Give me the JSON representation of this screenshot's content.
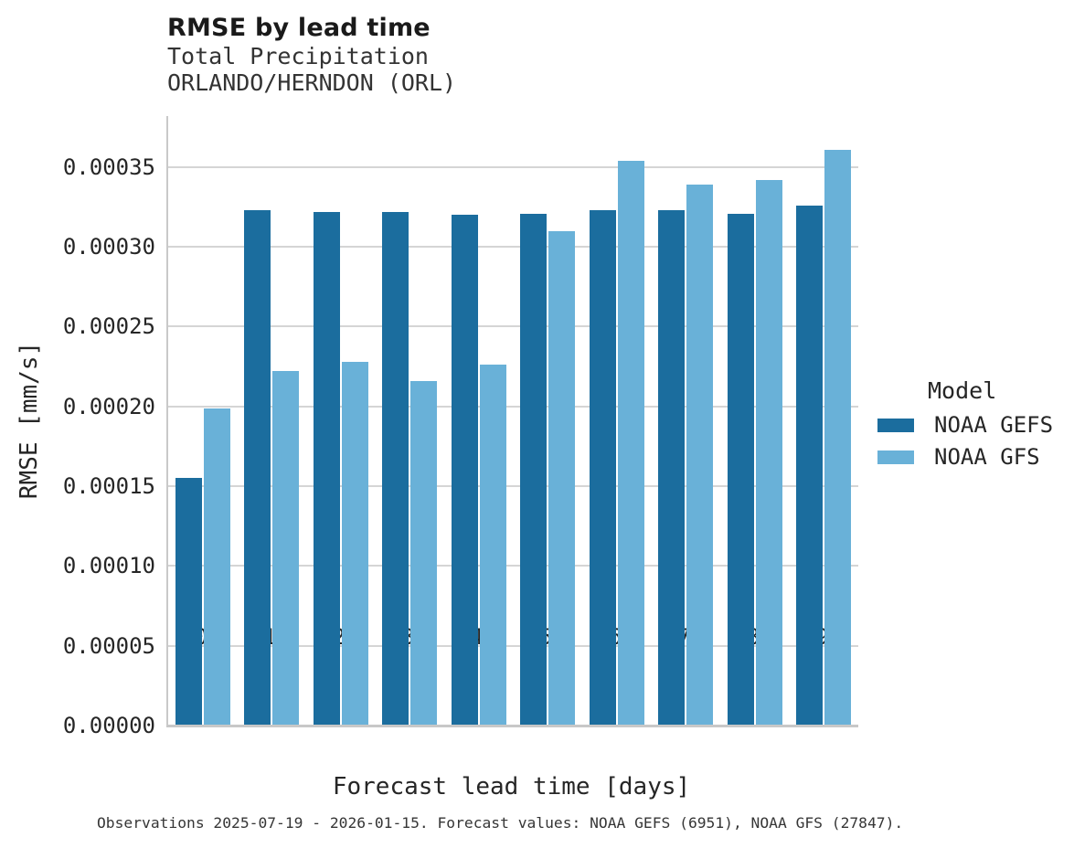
{
  "header": {
    "title": "RMSE by lead time",
    "subtitle_line1": "Total Precipitation",
    "subtitle_line2": "ORLANDO/HERNDON (ORL)"
  },
  "footer": {
    "caption": "Observations 2025-07-19 - 2026-01-15. Forecast values: NOAA GEFS (6951), NOAA GFS (27847)."
  },
  "colors": {
    "gefs_dark_blue": "#1b6d9e",
    "gfs_light_blue": "#69b1d8",
    "gridline": "#d5d5d5",
    "axis_spine": "#c8c8c8",
    "text": "#262626"
  },
  "chart_data": {
    "type": "bar",
    "title": "RMSE by lead time",
    "subtitle": [
      "Total Precipitation",
      "ORLANDO/HERNDON (ORL)"
    ],
    "xlabel": "Forecast lead time [days]",
    "ylabel": "RMSE [mm/s]",
    "categories": [
      "0",
      "1",
      "2",
      "3",
      "4",
      "5",
      "6",
      "7",
      "8",
      "9"
    ],
    "series": [
      {
        "name": "NOAA GEFS",
        "color": "#1b6d9e",
        "values": [
          0.000155,
          0.000323,
          0.000322,
          0.000322,
          0.00032,
          0.000321,
          0.000323,
          0.000323,
          0.000321,
          0.000326
        ]
      },
      {
        "name": "NOAA GFS",
        "color": "#69b1d8",
        "values": [
          0.000199,
          0.000222,
          0.000228,
          0.000216,
          0.000226,
          0.00031,
          0.000354,
          0.000339,
          0.000342,
          0.000361
        ]
      }
    ],
    "ylim": [
      0,
      0.000382
    ],
    "ytick_values": [
      0.0,
      5e-05,
      0.0001,
      0.00015,
      0.0002,
      0.00025,
      0.0003,
      0.00035
    ],
    "ytick_labels": [
      "0.00000",
      "0.00005",
      "0.00010",
      "0.00015",
      "0.00020",
      "0.00025",
      "0.00030",
      "0.00035"
    ],
    "grid": true,
    "legend_title": "Model",
    "legend_position": "center right",
    "caption": "Observations 2025-07-19 - 2026-01-15. Forecast values: NOAA GEFS (6951), NOAA GFS (27847)."
  }
}
